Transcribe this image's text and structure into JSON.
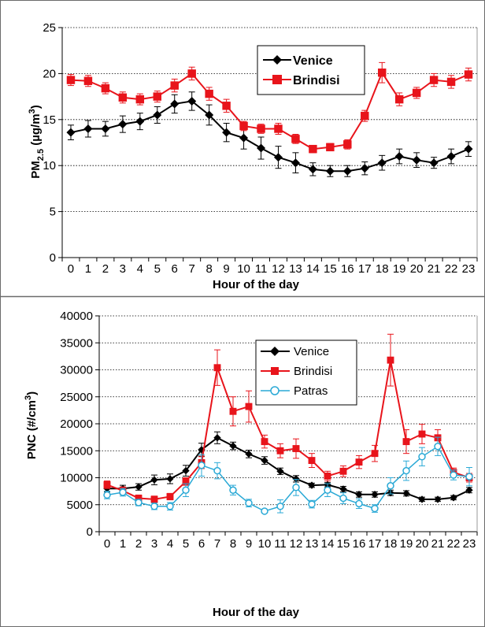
{
  "colors": {
    "venice": "#000000",
    "brindisi": "#e8141b",
    "patras": "#2aa9d6",
    "grid": "#000000",
    "frame": "#6b6b6b"
  },
  "chart_data": [
    {
      "type": "line",
      "xlabel": "Hour of the day",
      "ylabel": "PM2.5 (µg/m³)",
      "ylabel_parts": {
        "base": "PM",
        "sub": "2.5",
        "mid": " (µg/m",
        "sup": "3",
        "end": ")"
      },
      "categories": [
        "0",
        "1",
        "2",
        "3",
        "4",
        "5",
        "6",
        "7",
        "8",
        "9",
        "10",
        "11",
        "12",
        "13",
        "14",
        "15",
        "16",
        "17",
        "18",
        "19",
        "20",
        "21",
        "22",
        "23"
      ],
      "ylim": [
        0,
        25
      ],
      "yticks": [
        "0",
        "5",
        "10",
        "15",
        "20",
        "25"
      ],
      "grid": "horizontal dotted",
      "legend_position": "top-right",
      "series": [
        {
          "name": "Venice",
          "marker": "diamond",
          "color_key": "venice",
          "values": [
            13.6,
            14.0,
            14.0,
            14.5,
            14.8,
            15.5,
            16.7,
            17.0,
            15.5,
            13.6,
            13.0,
            11.9,
            10.9,
            10.3,
            9.6,
            9.4,
            9.4,
            9.7,
            10.3,
            11.0,
            10.6,
            10.3,
            11.0,
            11.8
          ],
          "errors": [
            0.8,
            0.9,
            0.8,
            0.9,
            0.9,
            0.9,
            1.0,
            1.0,
            1.1,
            1.0,
            1.2,
            1.2,
            1.2,
            1.1,
            0.7,
            0.6,
            0.6,
            0.7,
            0.8,
            0.8,
            0.8,
            0.6,
            0.8,
            0.8
          ]
        },
        {
          "name": "Brindisi",
          "marker": "square",
          "color_key": "brindisi",
          "values": [
            19.3,
            19.2,
            18.4,
            17.4,
            17.2,
            17.5,
            18.7,
            20.0,
            17.8,
            16.5,
            14.3,
            14.0,
            14.0,
            12.9,
            11.8,
            12.0,
            12.3,
            15.4,
            20.1,
            17.2,
            17.9,
            19.3,
            19.1,
            19.9
          ],
          "errors": [
            0.6,
            0.6,
            0.6,
            0.6,
            0.6,
            0.6,
            0.7,
            0.7,
            0.7,
            0.7,
            0.5,
            0.5,
            0.6,
            0.5,
            0.4,
            0.4,
            0.5,
            0.6,
            1.1,
            0.7,
            0.6,
            0.7,
            0.7,
            0.7
          ]
        }
      ]
    },
    {
      "type": "line",
      "xlabel": "Hour of the day",
      "ylabel": "PNC (#/cm³)",
      "ylabel_parts": {
        "base": "PNC (#/cm",
        "sub": "",
        "mid": "",
        "sup": "3",
        "end": ")"
      },
      "categories": [
        "0",
        "1",
        "2",
        "3",
        "4",
        "5",
        "6",
        "7",
        "8",
        "9",
        "10",
        "11",
        "12",
        "13",
        "14",
        "15",
        "16",
        "17",
        "18",
        "19",
        "20",
        "21",
        "22",
        "23"
      ],
      "ylim": [
        0,
        40000
      ],
      "yticks": [
        "0",
        "5000",
        "10000",
        "15000",
        "20000",
        "25000",
        "30000",
        "35000",
        "40000"
      ],
      "grid": "horizontal dotted",
      "legend_position": "top-right",
      "series": [
        {
          "name": "Venice",
          "marker": "diamond",
          "color_key": "venice",
          "values": [
            8000,
            8000,
            8300,
            9600,
            9800,
            11300,
            15200,
            17400,
            15900,
            14400,
            13200,
            11200,
            9800,
            8600,
            8700,
            7900,
            6900,
            6900,
            7200,
            7100,
            6000,
            6000,
            6300,
            7700
          ],
          "errors": [
            600,
            600,
            600,
            900,
            900,
            1000,
            1200,
            1100,
            700,
            700,
            700,
            600,
            600,
            400,
            400,
            500,
            500,
            500,
            500,
            500,
            400,
            400,
            400,
            500
          ]
        },
        {
          "name": "Brindisi",
          "marker": "square",
          "color_key": "brindisi",
          "values": [
            8700,
            7600,
            6200,
            6000,
            6500,
            9300,
            12800,
            30400,
            22300,
            23200,
            16700,
            15000,
            15400,
            13200,
            10300,
            11200,
            12900,
            14500,
            31800,
            16700,
            18100,
            17400,
            11000,
            10000
          ],
          "errors": [
            700,
            700,
            600,
            600,
            600,
            700,
            1100,
            3300,
            2700,
            2900,
            1200,
            1300,
            1800,
            1300,
            900,
            1000,
            1200,
            1500,
            4800,
            2200,
            1800,
            1500,
            800,
            800
          ]
        },
        {
          "name": "Patras",
          "marker": "circle-open",
          "color_key": "patras",
          "values": [
            6800,
            7300,
            5400,
            4700,
            4700,
            7700,
            12300,
            11300,
            7700,
            5300,
            3800,
            4700,
            8200,
            5100,
            7700,
            6200,
            5200,
            4300,
            8500,
            11300,
            13900,
            15800,
            10500,
            10200
          ],
          "errors": [
            700,
            700,
            600,
            600,
            700,
            1200,
            2000,
            1500,
            900,
            700,
            300,
            1200,
            1500,
            700,
            1200,
            1000,
            900,
            700,
            1500,
            1800,
            1700,
            1700,
            900,
            1700
          ]
        }
      ]
    }
  ]
}
